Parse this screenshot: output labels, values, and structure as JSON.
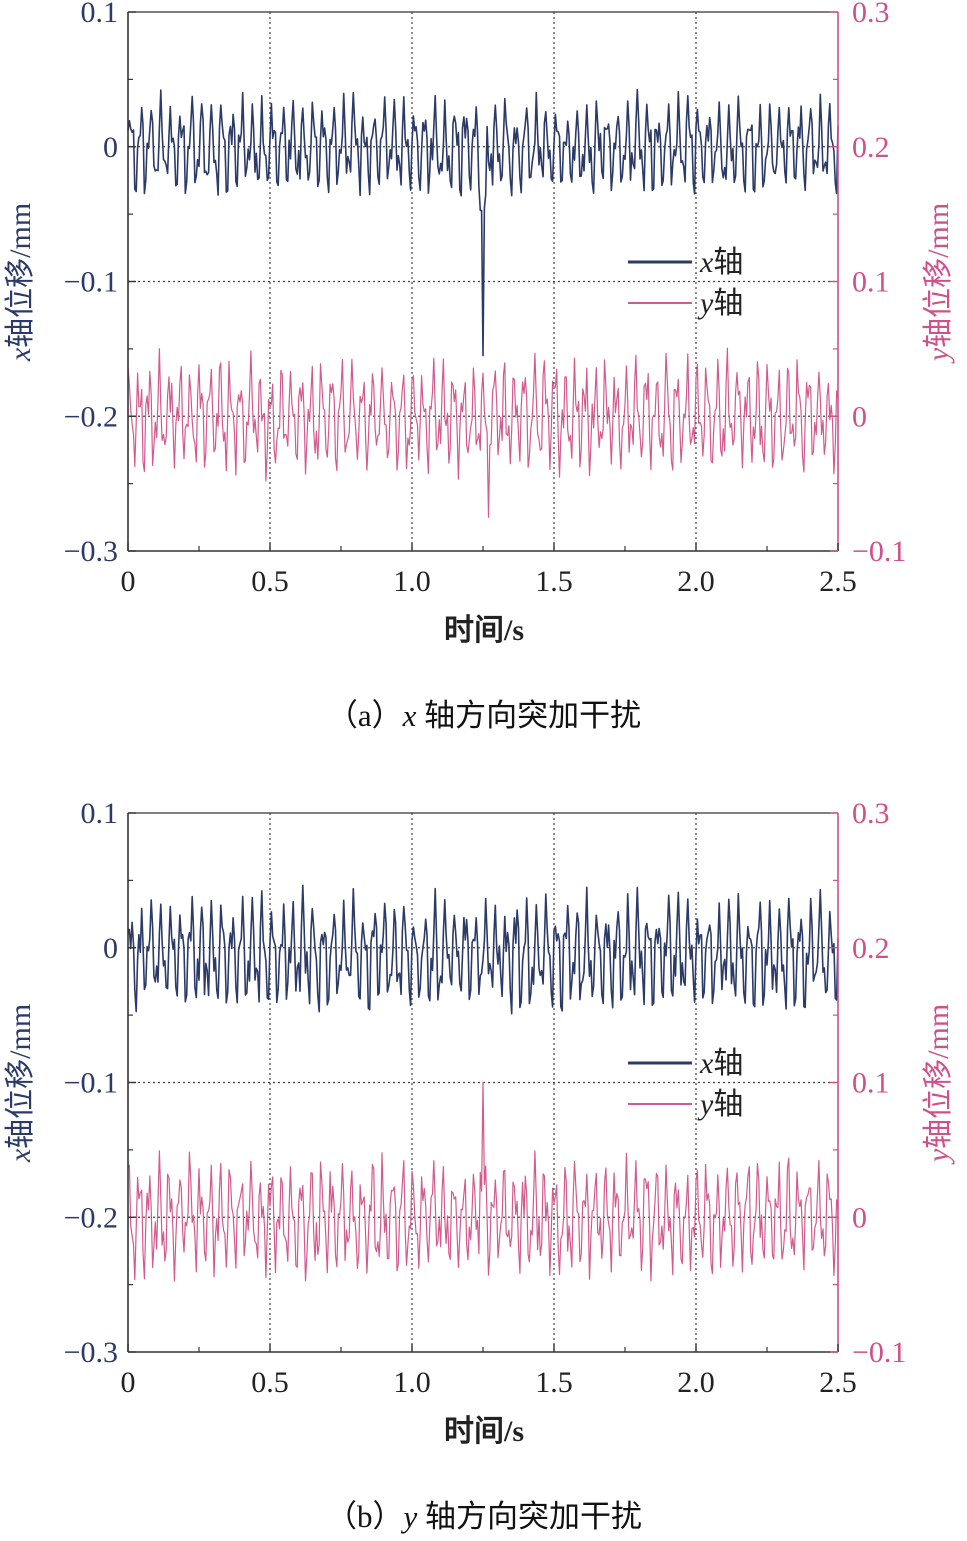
{
  "colors": {
    "x_series": "#2b3a67",
    "y_series": "#d35a8e",
    "right_axis": "#d0508a",
    "left_axis": "#2b3a67",
    "grid": "#333333"
  },
  "chart_data": [
    {
      "type": "line",
      "caption_prefix": "（a）",
      "caption_var": "x",
      "caption_suffix": " 轴方向突加干扰",
      "xlabel": "时间/s",
      "ylabel_left_var": "x",
      "ylabel_left_rest": "轴位移/mm",
      "ylabel_right_var": "y",
      "ylabel_right_rest": "轴位移/mm",
      "xlim": [
        0,
        2.5
      ],
      "ylim_left": [
        -0.3,
        0.1
      ],
      "ylim_right": [
        -0.1,
        0.3
      ],
      "x_ticks": [
        "0",
        "0.5",
        "1.0",
        "1.5",
        "2.0",
        "2.5"
      ],
      "y_ticks_left": [
        "0.1",
        "0",
        "−0.1",
        "−0.2",
        "−0.3"
      ],
      "y_ticks_right": [
        "0.3",
        "0.2",
        "0.1",
        "0",
        "−0.1"
      ],
      "grid": true,
      "legend_position": "right",
      "series": [
        {
          "name_var": "x",
          "name_rest": "轴",
          "axis": "left",
          "center": 0.0,
          "amp": 0.03,
          "spike": {
            "t": 1.25,
            "value": -0.155
          }
        },
        {
          "name_var": "y",
          "name_rest": "轴",
          "axis": "right",
          "center": 0.0,
          "amp": 0.035,
          "spike": {
            "t": 1.27,
            "value": -0.075
          }
        }
      ]
    },
    {
      "type": "line",
      "caption_prefix": "（b）",
      "caption_var": "y",
      "caption_suffix": " 轴方向突加干扰",
      "xlabel": "时间/s",
      "ylabel_left_var": "x",
      "ylabel_left_rest": "轴位移/mm",
      "ylabel_right_var": "y",
      "ylabel_right_rest": "轴位移/mm",
      "xlim": [
        0,
        2.5
      ],
      "ylim_left": [
        -0.3,
        0.1
      ],
      "ylim_right": [
        -0.1,
        0.3
      ],
      "x_ticks": [
        "0",
        "0.5",
        "1.0",
        "1.5",
        "2.0",
        "2.5"
      ],
      "y_ticks_left": [
        "0.1",
        "0",
        "−0.1",
        "−0.2",
        "−0.3"
      ],
      "y_ticks_right": [
        "0.3",
        "0.2",
        "0.1",
        "0",
        "−0.1"
      ],
      "grid": true,
      "legend_position": "right",
      "series": [
        {
          "name_var": "x",
          "name_rest": "轴",
          "axis": "left",
          "center": -0.005,
          "amp": 0.035,
          "spike": null
        },
        {
          "name_var": "y",
          "name_rest": "轴",
          "axis": "right",
          "center": 0.0,
          "amp": 0.035,
          "spike": {
            "t": 1.25,
            "value": 0.1
          }
        }
      ]
    }
  ]
}
